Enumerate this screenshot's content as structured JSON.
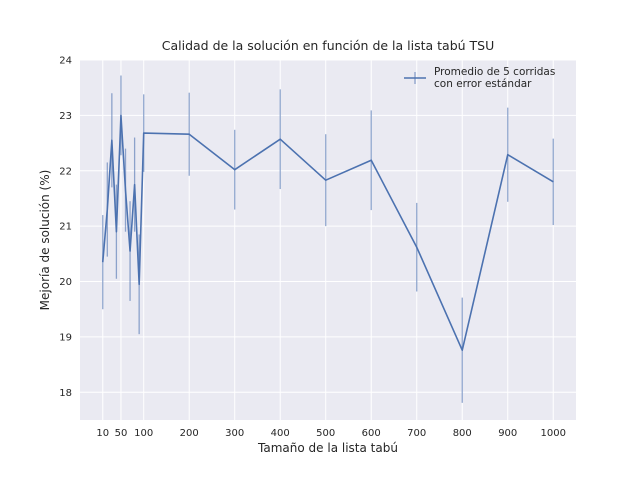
{
  "chart_data": {
    "type": "line",
    "title": "Calidad de la solución en función de la lista tabú TSU",
    "xlabel": "Tamaño de la lista tabú",
    "ylabel": "Mejoría de solución (%)",
    "xlim": [
      -40,
      1050
    ],
    "ylim": [
      17.5,
      24.0
    ],
    "xticks": [
      10,
      50,
      100,
      200,
      300,
      400,
      500,
      600,
      700,
      800,
      900,
      1000
    ],
    "yticks": [
      18,
      19,
      20,
      21,
      22,
      23,
      24
    ],
    "grid": true,
    "legend_position": "top-right",
    "series": [
      {
        "name": "Promedio de 5 corridas\ncon error estándar",
        "color": "#4c72b0",
        "x": [
          10,
          20,
          30,
          40,
          50,
          60,
          70,
          80,
          90,
          100,
          200,
          300,
          400,
          500,
          600,
          700,
          800,
          900,
          1000
        ],
        "y": [
          20.35,
          21.3,
          22.55,
          20.9,
          23.0,
          21.65,
          20.55,
          21.75,
          19.95,
          22.68,
          22.66,
          22.02,
          22.57,
          21.83,
          22.19,
          20.62,
          18.76,
          22.29,
          21.8
        ],
        "err": [
          0.85,
          0.85,
          0.85,
          0.85,
          0.72,
          0.75,
          0.9,
          0.85,
          0.9,
          0.7,
          0.75,
          0.72,
          0.9,
          0.83,
          0.9,
          0.8,
          0.95,
          0.85,
          0.78
        ]
      }
    ]
  }
}
